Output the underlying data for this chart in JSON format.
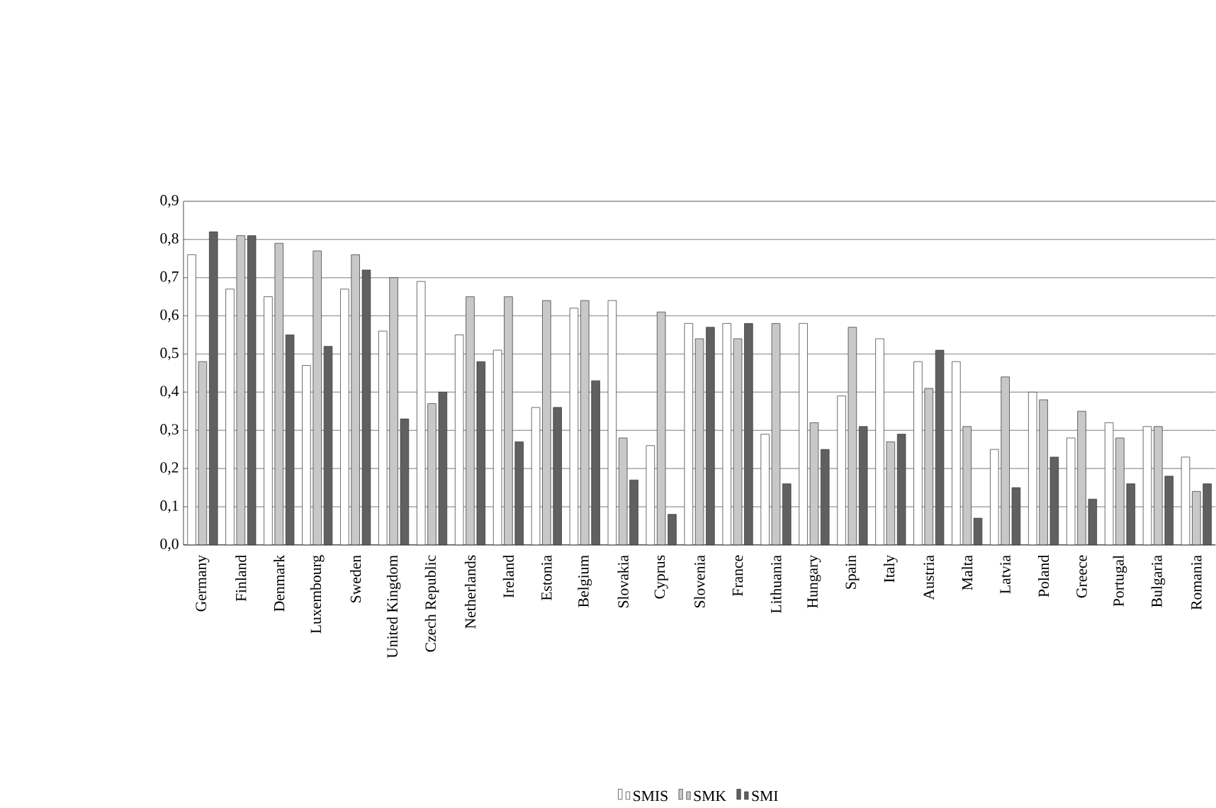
{
  "chart_data": {
    "type": "bar",
    "categories": [
      "Germany",
      "Finland",
      "Denmark",
      "Luxembourg",
      "Sweden",
      "United Kingdom",
      "Czech Republic",
      "Netherlands",
      "Ireland",
      "Estonia",
      "Belgium",
      "Slovakia",
      "Cyprus",
      "Slovenia",
      "France",
      "Lithuania",
      "Hungary",
      "Spain",
      "Italy",
      "Austria",
      "Malta",
      "Latvia",
      "Poland",
      "Greece",
      "Portugal",
      "Bulgaria",
      "Romania"
    ],
    "series": [
      {
        "name": "SMIS",
        "color": "#ffffff",
        "values": [
          0.76,
          0.67,
          0.65,
          0.47,
          0.67,
          0.56,
          0.69,
          0.55,
          0.51,
          0.36,
          0.62,
          0.64,
          0.26,
          0.58,
          0.58,
          0.29,
          0.58,
          0.39,
          0.54,
          0.48,
          0.48,
          0.25,
          0.4,
          0.28,
          0.32,
          0.31,
          0.23
        ]
      },
      {
        "name": "SMK",
        "color": "#c8c8c8",
        "values": [
          0.48,
          0.81,
          0.79,
          0.77,
          0.76,
          0.7,
          0.37,
          0.65,
          0.65,
          0.64,
          0.64,
          0.28,
          0.61,
          0.54,
          0.54,
          0.58,
          0.32,
          0.57,
          0.27,
          0.41,
          0.31,
          0.44,
          0.38,
          0.35,
          0.28,
          0.31,
          0.14
        ]
      },
      {
        "name": "SMI",
        "color": "#606060",
        "values": [
          0.82,
          0.81,
          0.55,
          0.52,
          0.72,
          0.33,
          0.4,
          0.48,
          0.27,
          0.36,
          0.43,
          0.17,
          0.08,
          0.57,
          0.58,
          0.16,
          0.25,
          0.31,
          0.29,
          0.51,
          0.07,
          0.15,
          0.23,
          0.12,
          0.16,
          0.18,
          0.16
        ]
      }
    ],
    "ylim": [
      0,
      0.9
    ],
    "yticks": [
      {
        "value": 0,
        "label": "0,0"
      },
      {
        "value": 0.1,
        "label": "0,1"
      },
      {
        "value": 0.2,
        "label": "0,2"
      },
      {
        "value": 0.3,
        "label": "0,3"
      },
      {
        "value": 0.4,
        "label": "0,4"
      },
      {
        "value": 0.5,
        "label": "0,5"
      },
      {
        "value": 0.6,
        "label": "0,6"
      },
      {
        "value": 0.7,
        "label": "0,7"
      },
      {
        "value": 0.8,
        "label": "0,8"
      },
      {
        "value": 0.9,
        "label": "0,9"
      }
    ],
    "grid": "y",
    "legend": "bottom"
  }
}
